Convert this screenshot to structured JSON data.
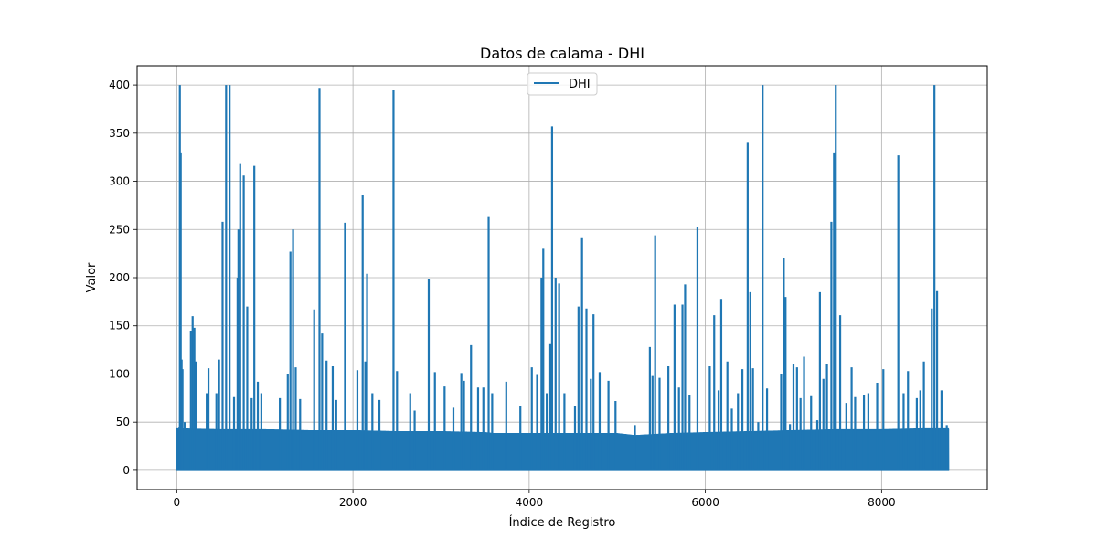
{
  "chart_data": {
    "type": "line",
    "title": "Datos de calama - DHI",
    "xlabel": "Índice de Registro",
    "ylabel": "Valor",
    "xlim": [
      -450,
      9200
    ],
    "ylim": [
      -20,
      420
    ],
    "xticks": [
      0,
      2000,
      4000,
      6000,
      8000
    ],
    "yticks": [
      0,
      50,
      100,
      150,
      200,
      250,
      300,
      350,
      400
    ],
    "grid": true,
    "legend": {
      "position": "upper center",
      "entries": [
        "DHI"
      ]
    },
    "series": [
      {
        "name": "DHI",
        "color": "#1f77b4",
        "n_points": 8760,
        "baseline_envelope": [
          [
            0,
            43
          ],
          [
            500,
            42
          ],
          [
            1000,
            42
          ],
          [
            1500,
            41
          ],
          [
            2000,
            41
          ],
          [
            2500,
            40
          ],
          [
            3000,
            40
          ],
          [
            3500,
            39
          ],
          [
            3600,
            38
          ],
          [
            4000,
            38
          ],
          [
            4500,
            38
          ],
          [
            5000,
            38
          ],
          [
            5200,
            36
          ],
          [
            5600,
            38
          ],
          [
            6000,
            39
          ],
          [
            6500,
            40
          ],
          [
            7000,
            41
          ],
          [
            7500,
            42
          ],
          [
            8000,
            42
          ],
          [
            8500,
            43
          ],
          [
            8750,
            43
          ]
        ],
        "peaks": [
          [
            30,
            45
          ],
          [
            35,
            400
          ],
          [
            45,
            330
          ],
          [
            55,
            115
          ],
          [
            65,
            105
          ],
          [
            90,
            50
          ],
          [
            160,
            145
          ],
          [
            180,
            160
          ],
          [
            200,
            148
          ],
          [
            220,
            113
          ],
          [
            340,
            80
          ],
          [
            360,
            106
          ],
          [
            450,
            80
          ],
          [
            480,
            115
          ],
          [
            520,
            258
          ],
          [
            560,
            400
          ],
          [
            600,
            400
          ],
          [
            650,
            76
          ],
          [
            690,
            200
          ],
          [
            700,
            250
          ],
          [
            720,
            318
          ],
          [
            760,
            306
          ],
          [
            800,
            170
          ],
          [
            850,
            75
          ],
          [
            880,
            316
          ],
          [
            920,
            92
          ],
          [
            960,
            80
          ],
          [
            1170,
            75
          ],
          [
            1260,
            100
          ],
          [
            1290,
            227
          ],
          [
            1320,
            250
          ],
          [
            1350,
            107
          ],
          [
            1400,
            74
          ],
          [
            1560,
            167
          ],
          [
            1620,
            397
          ],
          [
            1650,
            142
          ],
          [
            1700,
            114
          ],
          [
            1770,
            108
          ],
          [
            1810,
            73
          ],
          [
            1910,
            257
          ],
          [
            2050,
            104
          ],
          [
            2110,
            286
          ],
          [
            2140,
            113
          ],
          [
            2160,
            204
          ],
          [
            2220,
            80
          ],
          [
            2300,
            73
          ],
          [
            2460,
            395
          ],
          [
            2500,
            103
          ],
          [
            2650,
            80
          ],
          [
            2700,
            62
          ],
          [
            2860,
            199
          ],
          [
            2930,
            102
          ],
          [
            3040,
            87
          ],
          [
            3140,
            65
          ],
          [
            3230,
            101
          ],
          [
            3260,
            93
          ],
          [
            3340,
            130
          ],
          [
            3420,
            86
          ],
          [
            3480,
            86
          ],
          [
            3540,
            263
          ],
          [
            3580,
            80
          ],
          [
            3740,
            92
          ],
          [
            3900,
            67
          ],
          [
            4030,
            107
          ],
          [
            4090,
            99
          ],
          [
            4140,
            200
          ],
          [
            4160,
            230
          ],
          [
            4200,
            80
          ],
          [
            4240,
            131
          ],
          [
            4260,
            357
          ],
          [
            4300,
            200
          ],
          [
            4340,
            194
          ],
          [
            4400,
            80
          ],
          [
            4520,
            67
          ],
          [
            4560,
            170
          ],
          [
            4600,
            241
          ],
          [
            4650,
            168
          ],
          [
            4700,
            95
          ],
          [
            4730,
            162
          ],
          [
            4800,
            102
          ],
          [
            4900,
            93
          ],
          [
            4980,
            72
          ],
          [
            5200,
            47
          ],
          [
            5370,
            128
          ],
          [
            5400,
            98
          ],
          [
            5430,
            244
          ],
          [
            5480,
            96
          ],
          [
            5580,
            108
          ],
          [
            5650,
            172
          ],
          [
            5700,
            86
          ],
          [
            5740,
            172
          ],
          [
            5770,
            193
          ],
          [
            5820,
            78
          ],
          [
            5910,
            253
          ],
          [
            6050,
            108
          ],
          [
            6100,
            161
          ],
          [
            6150,
            83
          ],
          [
            6180,
            178
          ],
          [
            6250,
            113
          ],
          [
            6300,
            64
          ],
          [
            6370,
            80
          ],
          [
            6420,
            105
          ],
          [
            6480,
            340
          ],
          [
            6510,
            185
          ],
          [
            6540,
            106
          ],
          [
            6600,
            50
          ],
          [
            6650,
            400
          ],
          [
            6700,
            85
          ],
          [
            6860,
            100
          ],
          [
            6890,
            220
          ],
          [
            6910,
            180
          ],
          [
            6960,
            48
          ],
          [
            7000,
            110
          ],
          [
            7040,
            107
          ],
          [
            7080,
            75
          ],
          [
            7120,
            118
          ],
          [
            7200,
            77
          ],
          [
            7270,
            52
          ],
          [
            7300,
            185
          ],
          [
            7340,
            95
          ],
          [
            7380,
            110
          ],
          [
            7430,
            258
          ],
          [
            7460,
            330
          ],
          [
            7480,
            400
          ],
          [
            7530,
            161
          ],
          [
            7600,
            70
          ],
          [
            7660,
            107
          ],
          [
            7700,
            76
          ],
          [
            7800,
            78
          ],
          [
            7850,
            80
          ],
          [
            7950,
            91
          ],
          [
            8020,
            105
          ],
          [
            8190,
            327
          ],
          [
            8250,
            80
          ],
          [
            8300,
            103
          ],
          [
            8400,
            75
          ],
          [
            8440,
            83
          ],
          [
            8480,
            113
          ],
          [
            8570,
            168
          ],
          [
            8600,
            400
          ],
          [
            8630,
            186
          ],
          [
            8680,
            83
          ],
          [
            8740,
            47
          ]
        ]
      }
    ]
  }
}
